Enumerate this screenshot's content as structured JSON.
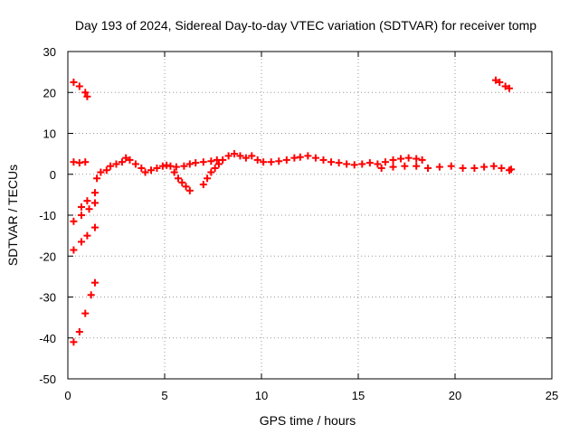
{
  "chart_data": {
    "type": "scatter",
    "title": "Day 193 of 2024, Sidereal Day-to-day VTEC variation (SDTVAR) for receiver tomp",
    "xlabel": "GPS time / hours",
    "ylabel": "SDTVAR / TECUs",
    "xlim": [
      0,
      25
    ],
    "ylim": [
      -50,
      30
    ],
    "xticks": [
      "0",
      "5",
      "10",
      "15",
      "20",
      "25"
    ],
    "yticks": [
      "30",
      "20",
      "10",
      "0",
      "-10",
      "-20",
      "-30",
      "-40",
      "-50"
    ],
    "grid": true,
    "marker_color": "#ff0000",
    "series": [
      {
        "points": [
          [
            0.3,
            -41.0
          ],
          [
            0.6,
            -38.5
          ],
          [
            0.9,
            -34.0
          ],
          [
            1.2,
            -29.5
          ],
          [
            1.4,
            -26.5
          ],
          [
            0.3,
            -18.5
          ],
          [
            0.7,
            -16.5
          ],
          [
            1.0,
            -15.0
          ],
          [
            1.4,
            -13.0
          ],
          [
            0.3,
            -11.5
          ],
          [
            0.7,
            -10.0
          ],
          [
            1.1,
            -8.5
          ],
          [
            1.4,
            -7.0
          ],
          [
            0.7,
            -8.0
          ],
          [
            1.0,
            -6.5
          ],
          [
            1.4,
            -4.5
          ],
          [
            0.3,
            3.0
          ],
          [
            0.6,
            2.8
          ],
          [
            0.9,
            3.0
          ],
          [
            0.3,
            22.5
          ],
          [
            0.6,
            21.5
          ],
          [
            0.9,
            20.0
          ],
          [
            1.0,
            19.0
          ],
          [
            1.5,
            -1.0
          ],
          [
            1.7,
            0.5
          ],
          [
            2.0,
            1.0
          ],
          [
            2.2,
            2.0
          ],
          [
            2.5,
            2.5
          ],
          [
            2.8,
            3.0
          ],
          [
            3.0,
            4.0
          ],
          [
            3.2,
            3.5
          ],
          [
            3.5,
            2.5
          ],
          [
            3.8,
            1.5
          ],
          [
            4.0,
            0.5
          ],
          [
            4.3,
            1.0
          ],
          [
            4.6,
            1.5
          ],
          [
            4.9,
            2.0
          ],
          [
            5.1,
            2.2
          ],
          [
            5.3,
            2.0
          ],
          [
            5.5,
            0.5
          ],
          [
            5.7,
            -1.0
          ],
          [
            5.9,
            -2.0
          ],
          [
            6.1,
            -3.0
          ],
          [
            6.3,
            -4.0
          ],
          [
            5.6,
            1.8
          ],
          [
            6.0,
            2.0
          ],
          [
            6.3,
            2.5
          ],
          [
            6.6,
            2.8
          ],
          [
            7.0,
            3.0
          ],
          [
            7.4,
            3.2
          ],
          [
            7.7,
            3.5
          ],
          [
            7.0,
            -2.5
          ],
          [
            7.2,
            -1.0
          ],
          [
            7.4,
            0.5
          ],
          [
            7.6,
            1.5
          ],
          [
            7.8,
            2.5
          ],
          [
            8.0,
            3.5
          ],
          [
            8.3,
            4.5
          ],
          [
            8.6,
            5.0
          ],
          [
            8.9,
            4.5
          ],
          [
            9.2,
            4.0
          ],
          [
            9.5,
            4.5
          ],
          [
            9.8,
            3.5
          ],
          [
            10.1,
            3.0
          ],
          [
            10.5,
            3.0
          ],
          [
            10.9,
            3.2
          ],
          [
            11.3,
            3.5
          ],
          [
            11.7,
            4.0
          ],
          [
            12.0,
            4.2
          ],
          [
            12.4,
            4.5
          ],
          [
            12.8,
            4.0
          ],
          [
            13.2,
            3.5
          ],
          [
            13.6,
            3.0
          ],
          [
            14.0,
            2.8
          ],
          [
            14.4,
            2.5
          ],
          [
            14.8,
            2.3
          ],
          [
            15.2,
            2.5
          ],
          [
            15.6,
            2.8
          ],
          [
            16.0,
            2.5
          ],
          [
            16.4,
            3.0
          ],
          [
            16.8,
            3.5
          ],
          [
            17.2,
            3.8
          ],
          [
            17.6,
            4.0
          ],
          [
            18.0,
            3.8
          ],
          [
            18.3,
            3.5
          ],
          [
            16.2,
            1.5
          ],
          [
            16.8,
            1.8
          ],
          [
            17.4,
            2.0
          ],
          [
            18.0,
            2.0
          ],
          [
            18.6,
            1.5
          ],
          [
            19.2,
            1.8
          ],
          [
            19.8,
            2.0
          ],
          [
            20.4,
            1.5
          ],
          [
            21.0,
            1.5
          ],
          [
            21.5,
            1.8
          ],
          [
            22.0,
            2.0
          ],
          [
            22.4,
            1.5
          ],
          [
            22.8,
            1.0
          ],
          [
            22.9,
            1.2
          ],
          [
            22.1,
            23.0
          ],
          [
            22.3,
            22.5
          ],
          [
            22.6,
            21.5
          ],
          [
            22.8,
            21.0
          ]
        ]
      }
    ]
  }
}
